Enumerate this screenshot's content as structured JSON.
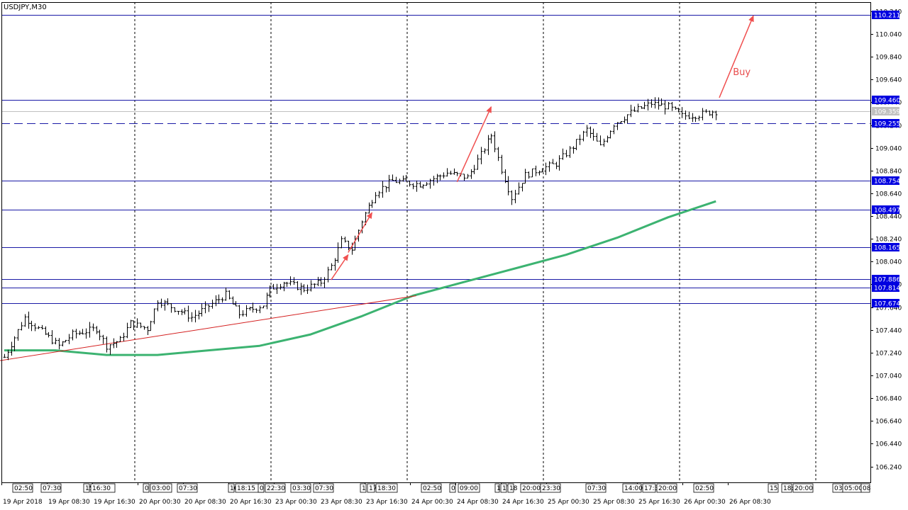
{
  "symbol_label": "USDJPY,M30",
  "colors": {
    "background": "#ffffff",
    "axis": "#000000",
    "grid": "#000000",
    "level_line": "#1a1aa6",
    "level_label_bg": "#0000e0",
    "current_price_line": "#c0c0c0",
    "current_price_label_bg": "#c0c0c0",
    "candle": "#000000",
    "moving_average": "#3cb371",
    "trendline": "#d42020",
    "arrow": "#f05050",
    "marker_bg": "#8fd6d6"
  },
  "chart_data": {
    "type": "line",
    "title": "USDJPY,M30",
    "ylim": [
      106.1,
      110.32
    ],
    "y_ticks": [
      106.24,
      106.44,
      106.64,
      106.84,
      107.04,
      107.24,
      107.44,
      107.64,
      107.84,
      108.04,
      108.24,
      108.44,
      108.64,
      108.84,
      109.04,
      109.24,
      109.44,
      109.64,
      109.84,
      110.04,
      110.24
    ],
    "y_tick_labels": [
      "106.240",
      "106.440",
      "106.640",
      "106.840",
      "107.040",
      "107.240",
      "107.440",
      "107.640",
      "107.840",
      "108.040",
      "108.240",
      "108.440",
      "108.640",
      "108.840",
      "109.040",
      "109.240",
      "109.440",
      "109.640",
      "109.840",
      "110.040",
      "110.240"
    ],
    "x_tick_labels": [
      "19 Apr 2018",
      "19 Apr 08:30",
      "19 Apr 16:30",
      "20 Apr 00:30",
      "20 Apr 08:30",
      "20 Apr 16:30",
      "23 Apr 00:30",
      "23 Apr 08:30",
      "23 Apr 16:30",
      "24 Apr 00:30",
      "24 Apr 08:30",
      "24 Apr 16:30",
      "25 Apr 00:30",
      "25 Apr 08:30",
      "25 Apr 16:30",
      "26 Apr 00:30",
      "26 Apr 08:30"
    ],
    "levels": [
      {
        "value": 110.211,
        "label": "110.211",
        "style": "solid"
      },
      {
        "value": 109.46,
        "label": "109.460",
        "style": "solid"
      },
      {
        "value": 109.255,
        "label": "109.255",
        "style": "dashed"
      },
      {
        "value": 108.754,
        "label": "108.754",
        "style": "solid"
      },
      {
        "value": 108.497,
        "label": "108.497",
        "style": "solid"
      },
      {
        "value": 108.165,
        "label": "108.165",
        "style": "solid"
      },
      {
        "value": 107.886,
        "label": "107.886",
        "style": "solid"
      },
      {
        "value": 107.814,
        "label": "107.814",
        "style": "solid"
      },
      {
        "value": 107.674,
        "label": "107.674",
        "style": "solid"
      }
    ],
    "current_price": {
      "value": 109.359,
      "label": "109.359"
    },
    "close_series": [
      {
        "bar": 0,
        "close": 107.2
      },
      {
        "bar": 6,
        "close": 107.55
      },
      {
        "bar": 10,
        "close": 107.45
      },
      {
        "bar": 16,
        "close": 107.3
      },
      {
        "bar": 20,
        "close": 107.4
      },
      {
        "bar": 27,
        "close": 107.45
      },
      {
        "bar": 30,
        "close": 107.3
      },
      {
        "bar": 34,
        "close": 107.35
      },
      {
        "bar": 37,
        "close": 107.5
      },
      {
        "bar": 42,
        "close": 107.45
      },
      {
        "bar": 45,
        "close": 107.7
      },
      {
        "bar": 52,
        "close": 107.6
      },
      {
        "bar": 55,
        "close": 107.55
      },
      {
        "bar": 60,
        "close": 107.65
      },
      {
        "bar": 65,
        "close": 107.75
      },
      {
        "bar": 69,
        "close": 107.58
      },
      {
        "bar": 76,
        "close": 107.66
      },
      {
        "bar": 78,
        "close": 107.8
      },
      {
        "bar": 82,
        "close": 107.86
      },
      {
        "bar": 88,
        "close": 107.8
      },
      {
        "bar": 93,
        "close": 107.86
      },
      {
        "bar": 96,
        "close": 108.0
      },
      {
        "bar": 99,
        "close": 108.22
      },
      {
        "bar": 102,
        "close": 108.15
      },
      {
        "bar": 105,
        "close": 108.4
      },
      {
        "bar": 109,
        "close": 108.65
      },
      {
        "bar": 114,
        "close": 108.75
      },
      {
        "bar": 122,
        "close": 108.72
      },
      {
        "bar": 130,
        "close": 108.82
      },
      {
        "bar": 136,
        "close": 108.78
      },
      {
        "bar": 140,
        "close": 108.98
      },
      {
        "bar": 143,
        "close": 109.15
      },
      {
        "bar": 146,
        "close": 108.85
      },
      {
        "bar": 149,
        "close": 108.6
      },
      {
        "bar": 153,
        "close": 108.8
      },
      {
        "bar": 157,
        "close": 108.85
      },
      {
        "bar": 162,
        "close": 108.9
      },
      {
        "bar": 167,
        "close": 109.05
      },
      {
        "bar": 171,
        "close": 109.2
      },
      {
        "bar": 175,
        "close": 109.05
      },
      {
        "bar": 179,
        "close": 109.25
      },
      {
        "bar": 184,
        "close": 109.35
      },
      {
        "bar": 190,
        "close": 109.43
      },
      {
        "bar": 195,
        "close": 109.4
      },
      {
        "bar": 199,
        "close": 109.32
      },
      {
        "bar": 204,
        "close": 109.33
      },
      {
        "bar": 208,
        "close": 109.36
      }
    ],
    "moving_average": [
      {
        "bar": 0,
        "value": 107.26
      },
      {
        "bar": 15,
        "value": 107.26
      },
      {
        "bar": 30,
        "value": 107.22
      },
      {
        "bar": 45,
        "value": 107.22
      },
      {
        "bar": 60,
        "value": 107.26
      },
      {
        "bar": 75,
        "value": 107.3
      },
      {
        "bar": 90,
        "value": 107.4
      },
      {
        "bar": 105,
        "value": 107.56
      },
      {
        "bar": 120,
        "value": 107.74
      },
      {
        "bar": 135,
        "value": 107.86
      },
      {
        "bar": 150,
        "value": 107.98
      },
      {
        "bar": 165,
        "value": 108.1
      },
      {
        "bar": 180,
        "value": 108.25
      },
      {
        "bar": 195,
        "value": 108.43
      },
      {
        "bar": 209,
        "value": 108.57
      }
    ],
    "trendline": {
      "from": {
        "bar": 0,
        "value": 107.17
      },
      "to": {
        "bar": 121,
        "value": 107.74
      }
    },
    "arrows": [
      {
        "from": {
          "bar": 96,
          "value": 107.88
        },
        "to": {
          "bar": 101,
          "value": 108.1
        }
      },
      {
        "from": {
          "bar": 101,
          "value": 108.12
        },
        "to": {
          "bar": 108,
          "value": 108.47
        }
      },
      {
        "from": {
          "bar": 133,
          "value": 108.74
        },
        "to": {
          "bar": 143,
          "value": 109.4
        }
      },
      {
        "from": {
          "bar": 210,
          "value": 109.48
        },
        "to": {
          "bar": 220,
          "value": 110.2
        }
      }
    ],
    "annotations": [
      {
        "text": "Buy",
        "bar": 214,
        "value": 109.68
      }
    ],
    "bar_count": 209,
    "time_markers": [
      "02:50",
      "07:30",
      "15",
      "16:30",
      "0",
      "03:00",
      "07:30",
      "16",
      "18:15",
      "0",
      "22:30",
      "03:30",
      "07:30",
      "1",
      "17",
      "18:30",
      "02:50",
      "0",
      "09:00",
      "1",
      "17",
      "18",
      "20:00",
      "23:30",
      "07:30",
      "14:00",
      "17:3",
      "20:00",
      "02:50",
      "15",
      "18:",
      "20:00",
      "03:",
      "05:00",
      "08"
    ]
  }
}
